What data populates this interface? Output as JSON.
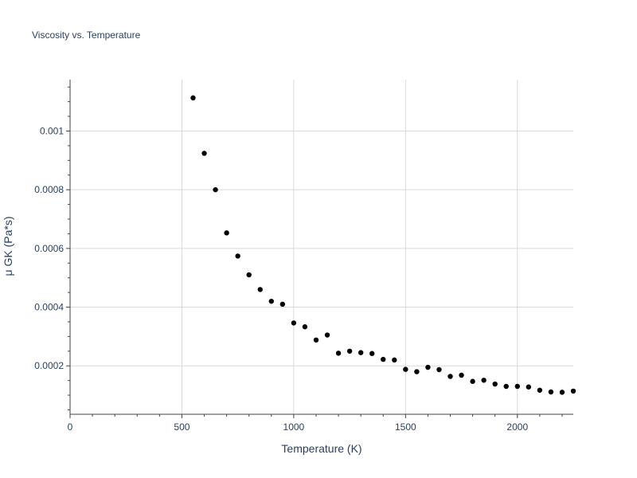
{
  "chart_data": {
    "type": "scatter",
    "title": "Viscosity vs. Temperature",
    "xlabel": "Temperature (K)",
    "ylabel": "μ GK (Pa*s)",
    "xlim": [
      0,
      2250
    ],
    "ylim": [
      3.5e-05,
      0.001175
    ],
    "x_ticks": [
      0,
      500,
      1000,
      1500,
      2000
    ],
    "x_tick_labels": [
      "0",
      "500",
      "1000",
      "1500",
      "2000"
    ],
    "y_ticks": [
      0.0002,
      0.0004,
      0.0006,
      0.0008,
      0.001
    ],
    "y_tick_labels": [
      "0.0002",
      "0.0004",
      "0.0006",
      "0.0008",
      "0.001"
    ],
    "grid": true,
    "legend": "none",
    "marker_color": "#000000",
    "series": [
      {
        "x": [
          550,
          600,
          650,
          700,
          750,
          800,
          850,
          900,
          950,
          1000,
          1050,
          1100,
          1150,
          1200,
          1250,
          1300,
          1350,
          1400,
          1450,
          1500,
          1550,
          1600,
          1650,
          1700,
          1750,
          1800,
          1850,
          1900,
          1950,
          2000,
          2050,
          2100,
          2150,
          2200,
          2250
        ],
        "y": [
          0.001113,
          0.000924,
          0.0008,
          0.000653,
          0.000574,
          0.00051,
          0.00046,
          0.00042,
          0.00041,
          0.000346,
          0.000333,
          0.000288,
          0.000305,
          0.000243,
          0.00025,
          0.000245,
          0.000242,
          0.000222,
          0.00022,
          0.000188,
          0.00018,
          0.000195,
          0.000187,
          0.000164,
          0.000168,
          0.000147,
          0.000151,
          0.000138,
          0.00013,
          0.00013,
          0.000128,
          0.000117,
          0.000111,
          0.00011,
          0.000114
        ]
      }
    ]
  },
  "colors": {
    "text": "#2a3f5f",
    "grid": "#d9d9d9",
    "axis": "#444444",
    "background": "#ffffff"
  }
}
